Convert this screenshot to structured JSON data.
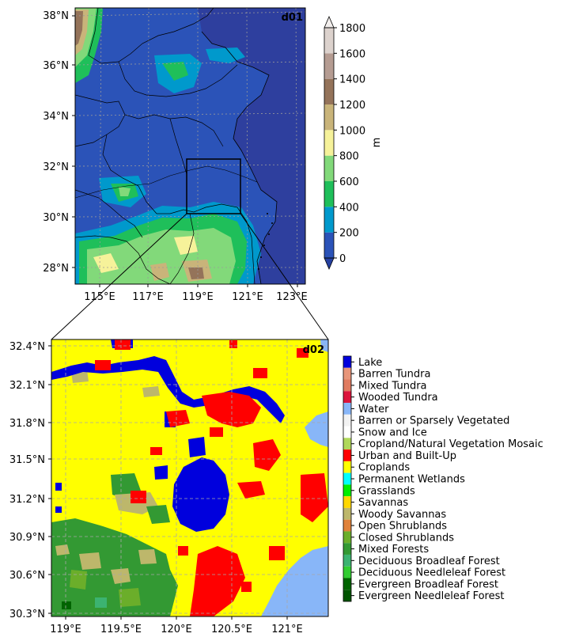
{
  "d01": {
    "label": "d01",
    "lat_ticks": [
      "38°N",
      "36°N",
      "34°N",
      "32°N",
      "30°N",
      "28°N"
    ],
    "lon_ticks": [
      "115°E",
      "117°E",
      "119°E",
      "121°E",
      "123°E"
    ]
  },
  "colorbar": {
    "unit": "m",
    "levels": [
      0,
      200,
      400,
      600,
      800,
      1000,
      1200,
      1400,
      1600,
      1800
    ],
    "colors": [
      "#2b53b8",
      "#0099cc",
      "#1fbf5a",
      "#82d97a",
      "#f6f29a",
      "#c9b47a",
      "#94735a",
      "#b59c92",
      "#dcd2cd"
    ],
    "under": "#2540a0",
    "over": "#f2eeec"
  },
  "d02": {
    "label": "d02",
    "lat_ticks": [
      "32.4°N",
      "32.1°N",
      "31.8°N",
      "31.5°N",
      "31.2°N",
      "30.9°N",
      "30.6°N",
      "30.3°N"
    ],
    "lon_ticks": [
      "119°E",
      "119.5°E",
      "120°E",
      "120.5°E",
      "121°E"
    ]
  },
  "landuse_legend": [
    {
      "label": "Lake",
      "color": "#0000dd"
    },
    {
      "label": "Barren Tundra",
      "color": "#e8967a"
    },
    {
      "label": "Mixed Tundra",
      "color": "#e07b60"
    },
    {
      "label": "Wooded Tundra",
      "color": "#dc143c"
    },
    {
      "label": "Water",
      "color": "#88b6f8"
    },
    {
      "label": "Barren or Sparsely Vegetated",
      "color": "#f2f2f2"
    },
    {
      "label": "Snow and Ice",
      "color": "#ffffff"
    },
    {
      "label": "Cropland/Natural Vegetation Mosaic",
      "color": "#b0d85a"
    },
    {
      "label": "Urban and Built-Up",
      "color": "#ff0000"
    },
    {
      "label": "Croplands",
      "color": "#ffff00"
    },
    {
      "label": "Permanent Wetlands",
      "color": "#00ffff"
    },
    {
      "label": "Grasslands",
      "color": "#00ee00"
    },
    {
      "label": "Savannas",
      "color": "#ffd700"
    },
    {
      "label": "Woody Savannas",
      "color": "#bdb76b"
    },
    {
      "label": "Open Shrublands",
      "color": "#e0823a"
    },
    {
      "label": "Closed Shrublands",
      "color": "#6bae2a"
    },
    {
      "label": "Mixed Forests",
      "color": "#339933"
    },
    {
      "label": "Deciduous Broadleaf Forest",
      "color": "#3cb371"
    },
    {
      "label": "Deciduous Needleleaf Forest",
      "color": "#32cd32"
    },
    {
      "label": "Evergreen Broadleaf Forest",
      "color": "#006400"
    },
    {
      "label": "Evergreen Needleleaf Forest",
      "color": "#005400"
    }
  ]
}
